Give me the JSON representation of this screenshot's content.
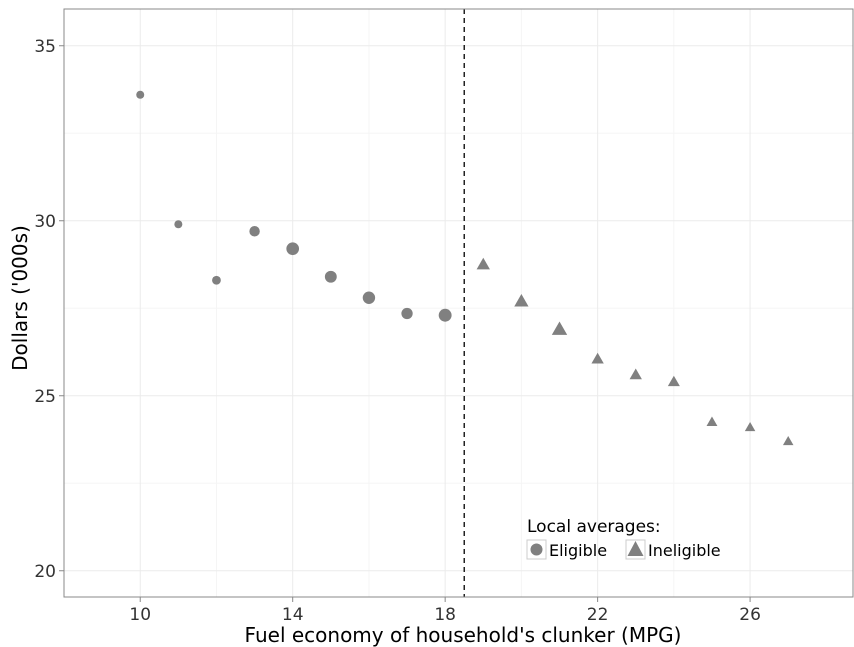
{
  "chart_data": {
    "type": "scatter",
    "title": "",
    "xlabel": "Fuel economy of household's clunker (MPG)",
    "ylabel": "Dollars ('000s)",
    "xlim": [
      8.0,
      28.7
    ],
    "ylim": [
      19.25,
      36.05
    ],
    "x_ticks": [
      10,
      14,
      18,
      22,
      26
    ],
    "x_tick_labels": [
      "10",
      "14",
      "18",
      "22",
      "26"
    ],
    "y_ticks": [
      20,
      25,
      30,
      35
    ],
    "y_tick_labels": [
      "20",
      "25",
      "30",
      "35"
    ],
    "grid": true,
    "cutoff_line": {
      "x": 18.5,
      "style": "dashed"
    },
    "legend": {
      "title": "Local averages:",
      "position": "bottom-right",
      "entries": [
        {
          "label": "Eligible",
          "shape": "circle"
        },
        {
          "label": "Ineligible",
          "shape": "triangle"
        }
      ]
    },
    "series": [
      {
        "name": "Eligible",
        "shape": "circle",
        "color": "#808080",
        "points": [
          {
            "x": 10,
            "y": 33.6,
            "size": 1
          },
          {
            "x": 11,
            "y": 29.9,
            "size": 1
          },
          {
            "x": 12,
            "y": 28.3,
            "size": 1.2
          },
          {
            "x": 13,
            "y": 29.7,
            "size": 1.7
          },
          {
            "x": 14,
            "y": 29.2,
            "size": 2.5
          },
          {
            "x": 15,
            "y": 28.4,
            "size": 2.2
          },
          {
            "x": 16,
            "y": 27.8,
            "size": 2.4
          },
          {
            "x": 17,
            "y": 27.35,
            "size": 2
          },
          {
            "x": 18,
            "y": 27.3,
            "size": 2.6
          }
        ]
      },
      {
        "name": "Ineligible",
        "shape": "triangle",
        "color": "#808080",
        "points": [
          {
            "x": 19,
            "y": 28.75,
            "size": 2.1
          },
          {
            "x": 20,
            "y": 27.7,
            "size": 2.4
          },
          {
            "x": 21,
            "y": 26.9,
            "size": 2.8
          },
          {
            "x": 22,
            "y": 26.05,
            "size": 1.8
          },
          {
            "x": 23,
            "y": 25.6,
            "size": 1.8
          },
          {
            "x": 24,
            "y": 25.4,
            "size": 1.7
          },
          {
            "x": 25,
            "y": 24.25,
            "size": 1.4
          },
          {
            "x": 26,
            "y": 24.1,
            "size": 1.3
          },
          {
            "x": 27,
            "y": 23.7,
            "size": 1.3
          }
        ]
      }
    ]
  }
}
